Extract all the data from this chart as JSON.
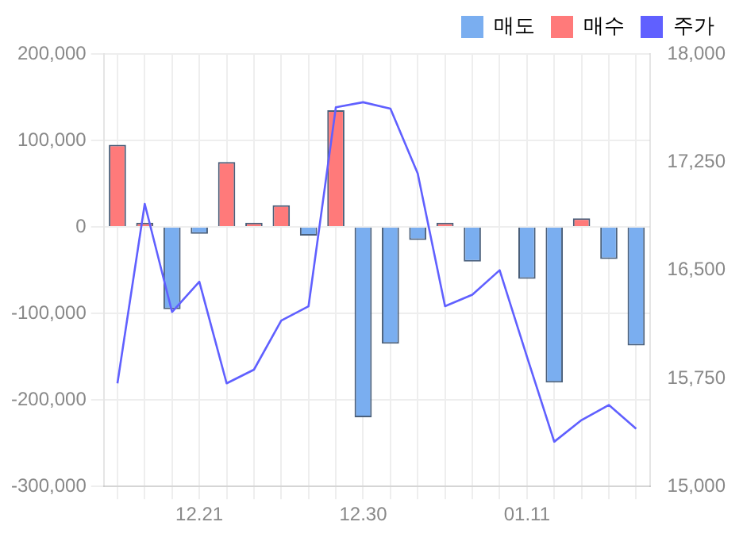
{
  "chart_data": {
    "type": "bar",
    "stacked": true,
    "categories": [
      null,
      null,
      null,
      "12.21",
      null,
      null,
      null,
      null,
      null,
      "12.30",
      null,
      null,
      null,
      null,
      null,
      "01.11",
      null,
      null,
      null,
      null
    ],
    "series": [
      {
        "name": "매도",
        "color": "#7aaef0",
        "values": [
          0,
          0,
          -95000,
          -8000,
          0,
          0,
          0,
          -10000,
          0,
          -220000,
          -135000,
          -15000,
          0,
          -40000,
          0,
          -60000,
          -180000,
          0,
          -37000,
          -137000
        ]
      },
      {
        "name": "매수",
        "color": "#ff7a7a",
        "values": [
          95000,
          5000,
          0,
          0,
          75000,
          5000,
          25000,
          0,
          135000,
          0,
          0,
          0,
          5000,
          0,
          0,
          0,
          0,
          10000,
          0,
          0
        ]
      },
      {
        "name": "주가",
        "type": "line",
        "axis": "y2",
        "color": "#6060ff",
        "values": [
          15715,
          16960,
          16210,
          16420,
          15715,
          15810,
          16150,
          16250,
          17630,
          17665,
          17620,
          17170,
          16250,
          16330,
          16500,
          15900,
          15310,
          15460,
          15565,
          15400
        ]
      }
    ],
    "ylim": [
      -300000,
      200000
    ],
    "yticks": [
      {
        "value": -300000,
        "label": "-300,000"
      },
      {
        "value": -200000,
        "label": "-200,000"
      },
      {
        "value": -100000,
        "label": "-100,000"
      },
      0,
      {
        "value": 100000,
        "label": "100,000"
      },
      {
        "value": 200000,
        "label": "200,000"
      }
    ],
    "y2lim": [
      15000,
      18000
    ],
    "y2ticks": [
      {
        "value": 15000,
        "label": "15,000"
      },
      {
        "value": 15750,
        "label": "15,750"
      },
      {
        "value": 16500,
        "label": "16,500"
      },
      {
        "value": 17250,
        "label": "17,250"
      },
      {
        "value": 18000,
        "label": "18,000"
      }
    ],
    "grid": true,
    "legend": "top right",
    "marker": "none"
  }
}
